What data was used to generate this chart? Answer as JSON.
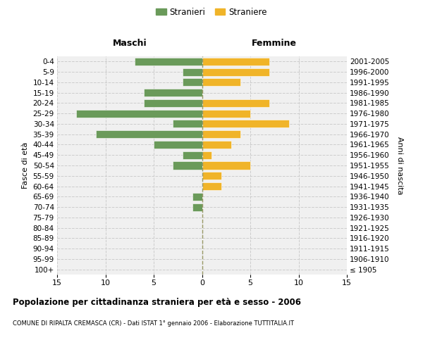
{
  "age_groups": [
    "100+",
    "95-99",
    "90-94",
    "85-89",
    "80-84",
    "75-79",
    "70-74",
    "65-69",
    "60-64",
    "55-59",
    "50-54",
    "45-49",
    "40-44",
    "35-39",
    "30-34",
    "25-29",
    "20-24",
    "15-19",
    "10-14",
    "5-9",
    "0-4"
  ],
  "birth_years": [
    "≤ 1905",
    "1906-1910",
    "1911-1915",
    "1916-1920",
    "1921-1925",
    "1926-1930",
    "1931-1935",
    "1936-1940",
    "1941-1945",
    "1946-1950",
    "1951-1955",
    "1956-1960",
    "1961-1965",
    "1966-1970",
    "1971-1975",
    "1976-1980",
    "1981-1985",
    "1986-1990",
    "1991-1995",
    "1996-2000",
    "2001-2005"
  ],
  "males": [
    0,
    0,
    0,
    0,
    0,
    0,
    1,
    1,
    0,
    0,
    3,
    2,
    5,
    11,
    3,
    13,
    6,
    6,
    2,
    2,
    7
  ],
  "females": [
    0,
    0,
    0,
    0,
    0,
    0,
    0,
    0,
    2,
    2,
    5,
    1,
    3,
    4,
    9,
    5,
    7,
    0,
    4,
    7,
    7
  ],
  "male_color": "#6a9a5a",
  "female_color": "#f0b429",
  "background_color": "#f0f0f0",
  "grid_color": "#cccccc",
  "title": "Popolazione per cittadinanza straniera per età e sesso - 2006",
  "subtitle": "COMUNE DI RIPALTA CREMASCA (CR) - Dati ISTAT 1° gennaio 2006 - Elaborazione TUTTITALIA.IT",
  "xlabel_left": "Maschi",
  "xlabel_right": "Femmine",
  "ylabel_left": "Fasce di età",
  "ylabel_right": "Anni di nascita",
  "legend_male": "Stranieri",
  "legend_female": "Straniere",
  "xlim": 15,
  "center_line_color": "#999966"
}
